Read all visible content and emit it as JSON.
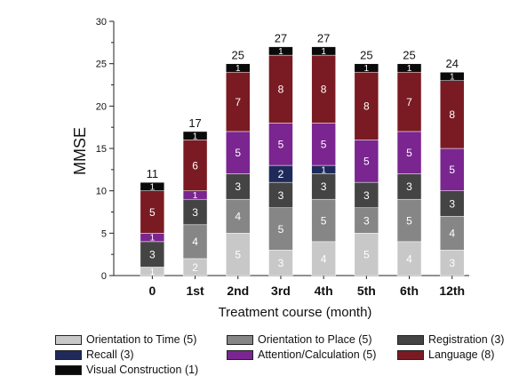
{
  "chart_data": {
    "type": "bar",
    "stacked": true,
    "title": "",
    "xlabel": "Treatment course (month)",
    "ylabel": "MMSE",
    "ylim": [
      0,
      30
    ],
    "yticks": [
      "0",
      "5",
      "10",
      "15",
      "20",
      "25",
      "30"
    ],
    "categories": [
      "0",
      "1st",
      "2nd",
      "3rd",
      "4th",
      "5th",
      "6th",
      "12th"
    ],
    "totals": [
      "11",
      "17",
      "25",
      "27",
      "27",
      "25",
      "25",
      "24"
    ],
    "series": [
      {
        "name": "Orientation to Time (5)",
        "color": "#c8c8c8",
        "values": [
          1,
          2,
          5,
          3,
          4,
          5,
          4,
          3
        ]
      },
      {
        "name": "Orientation to Place (5)",
        "color": "#868686",
        "values": [
          0,
          4,
          4,
          5,
          5,
          3,
          5,
          4
        ]
      },
      {
        "name": "Registration (3)",
        "color": "#444444",
        "values": [
          3,
          3,
          3,
          3,
          3,
          3,
          3,
          3
        ]
      },
      {
        "name": "Recall (3)",
        "color": "#1f2a5a",
        "values": [
          0,
          0,
          0,
          2,
          1,
          0,
          0,
          0
        ]
      },
      {
        "name": "Attention/Calculation (5)",
        "color": "#7a2590",
        "values": [
          1,
          1,
          5,
          5,
          5,
          5,
          5,
          5
        ]
      },
      {
        "name": "Language (8)",
        "color": "#7a1a22",
        "values": [
          5,
          6,
          7,
          8,
          8,
          8,
          7,
          8
        ]
      },
      {
        "name": "Visual Construction (1)",
        "color": "#0a0a0a",
        "values": [
          1,
          1,
          1,
          1,
          1,
          1,
          1,
          1
        ]
      }
    ],
    "grid": false,
    "legend_position": "bottom"
  }
}
